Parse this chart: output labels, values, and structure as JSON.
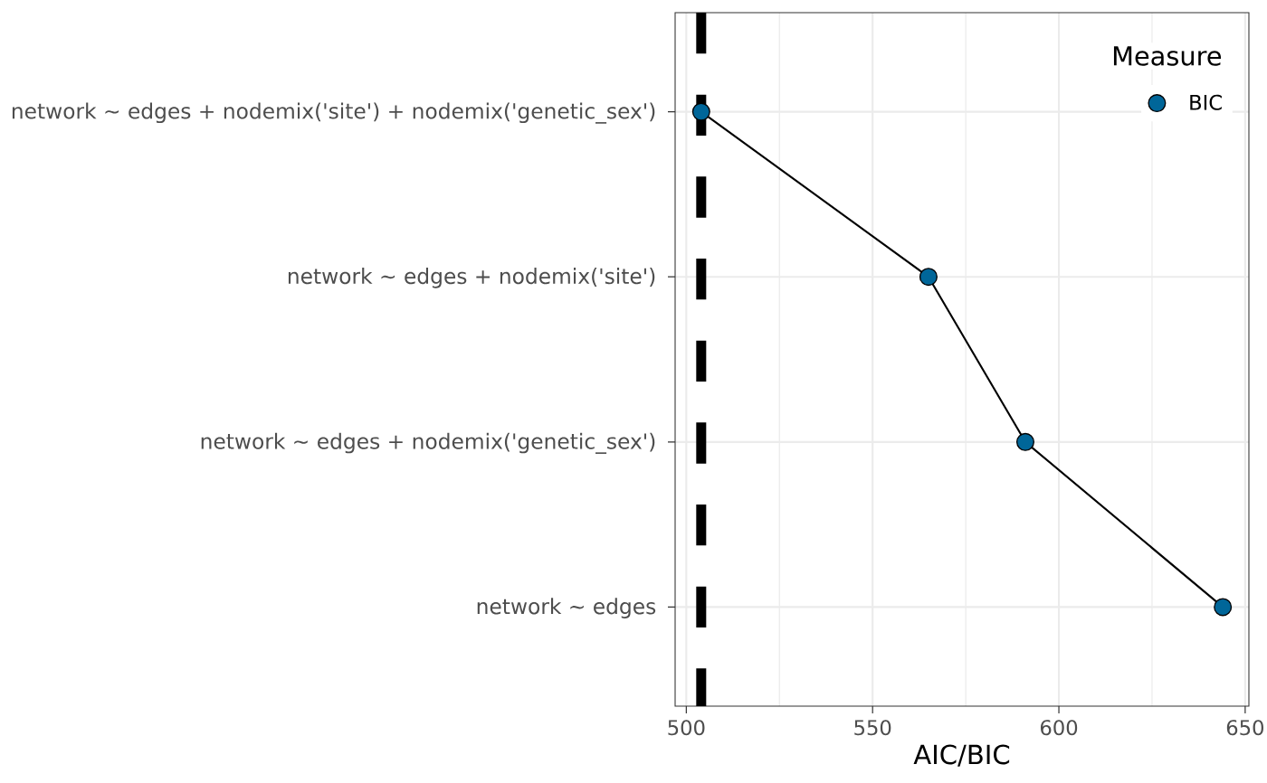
{
  "chart_data": {
    "type": "line",
    "orientation": "horizontal",
    "xlabel": "AIC/BIC",
    "legend_title": "Measure",
    "categories": [
      "network ~ edges + nodemix('site') + nodemix('genetic_sex')",
      "network ~ edges + nodemix('site')",
      "network ~ edges + nodemix('genetic_sex')",
      "network ~ edges"
    ],
    "series": [
      {
        "name": "BIC",
        "color": "#006699",
        "values": [
          504,
          565,
          591,
          644
        ]
      }
    ],
    "xlim": [
      497,
      651
    ],
    "xticks": [
      500,
      550,
      600,
      650
    ],
    "ref_lines": [
      {
        "axis": "x",
        "value": 504,
        "line_style": "dashed",
        "color": "#000000"
      }
    ],
    "grid": true,
    "legend": "top right",
    "marker": "circle"
  }
}
